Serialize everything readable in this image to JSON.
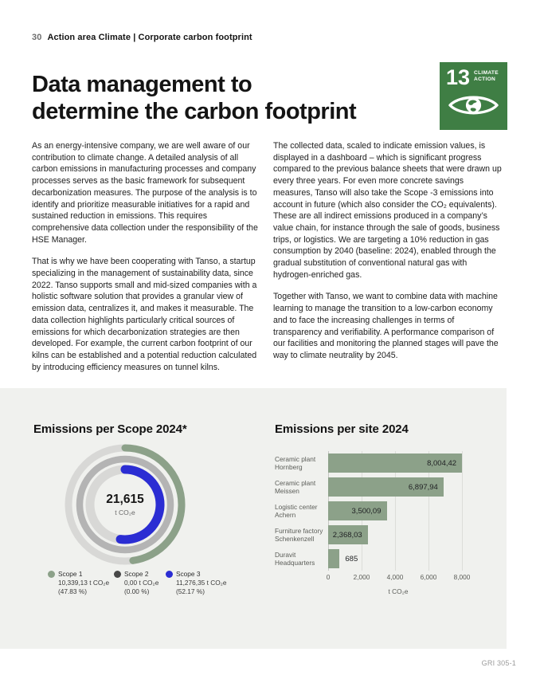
{
  "page": {
    "page_number": "30",
    "section_header": "Action area Climate | Corporate carbon footprint",
    "title_line1": "Data management to",
    "title_line2": "determine the carbon footprint",
    "footer_note": "GRI 305-1"
  },
  "sdg_badge": {
    "number": "13",
    "label_line1": "CLIMATE",
    "label_line2": "ACTION",
    "color": "#3F7E44"
  },
  "body": {
    "left_column": [
      "As an energy-intensive company, we are well aware of our contribution to climate change. A detailed analysis of all carbon emissions in manufacturing processes and company processes serves as the basic framework for subsequent decarbonization measures. The purpose of the analysis is to identify and prioritize measurable initiatives for a rapid and sustained reduction in emissions. This requires comprehensive data collection under the responsibility of the HSE Manager.",
      "That is why we have been cooperating with Tanso, a startup specializing in the management of sustainability data, since 2022. Tanso supports small and mid-sized companies with a holistic software solution that provides a granular view of emission data, centralizes it, and makes it measurable. The data collection highlights particularly critical sources of emissions for which decarbonization strategies are then developed. For example, the current carbon footprint of our kilns can be established and a potential reduction calculated by introducing efficiency measures on tunnel kilns."
    ],
    "right_column": [
      "The collected data, scaled to indicate emission values, is displayed in a dashboard – which is significant progress compared to the previous balance sheets that were drawn up every three years. For even more concrete savings measures, Tanso will also take the Scope -3 emissions into account in future (which also consider the CO₂ equivalents). These are all indirect emissions produced in a company’s value chain, for instance through the sale of goods, business trips, or logistics. We are targeting a 10% reduction in gas consumption by 2040 (baseline: 2024), enabled through the gradual substitution of conventional natural gas with hydrogen-enriched gas.",
      "Together with Tanso, we want to combine data with machine learning to manage the transition to a low-carbon economy and to face the increasing challenges in terms of transparency and verifiability. A performance comparison of our facilities and monitoring the planned stages will pave the way to climate neutrality by 2045."
    ]
  },
  "chart_data": [
    {
      "type": "donut",
      "title": "Emissions per Scope 2024*",
      "center_value": "21,615",
      "center_unit": "t CO₂e",
      "track_color": "#D8D8D6",
      "legend_position": "bottom",
      "rings": [
        {
          "name": "Scope 1",
          "value_label": "10,339,13 t CO₂e",
          "pct": 47.83,
          "pct_label": "(47.83 %)",
          "color": "#8CA189"
        },
        {
          "name": "Scope 2",
          "value_label": "0,00 t CO₂e",
          "pct": 0,
          "pct_label": "(0.00 %)",
          "color": "#474747",
          "ring_track_color": "#B4B4B4"
        },
        {
          "name": "Scope 3",
          "value_label": "11,276,35 t CO₂e",
          "pct": 52.17,
          "pct_label": "(52.17 %)",
          "color": "#2B2DD3"
        }
      ]
    },
    {
      "type": "bar",
      "title": "Emissions per site 2024",
      "orientation": "horizontal",
      "categories": [
        [
          "Ceramic plant",
          "Hornberg"
        ],
        [
          "Ceramic plant",
          "Meissen"
        ],
        [
          "Logistic center",
          "Achern"
        ],
        [
          "Furniture factory",
          "Schenkenzell"
        ],
        [
          "Duravit",
          "Headquarters"
        ]
      ],
      "values": [
        8004.42,
        6897.94,
        3500.09,
        2368.03,
        685
      ],
      "value_labels": [
        "8,004,42",
        "6,897,94",
        "3,500,09",
        "2,368,03",
        "685"
      ],
      "xticks": [
        0,
        2000,
        4000,
        6000,
        8000
      ],
      "xtick_labels": [
        "0",
        "2,000",
        "4,000",
        "6,000",
        "8,000"
      ],
      "xlim": [
        0,
        8000
      ],
      "xlabel": "t CO₂e",
      "bar_color": "#8CA189",
      "grid": true
    }
  ]
}
